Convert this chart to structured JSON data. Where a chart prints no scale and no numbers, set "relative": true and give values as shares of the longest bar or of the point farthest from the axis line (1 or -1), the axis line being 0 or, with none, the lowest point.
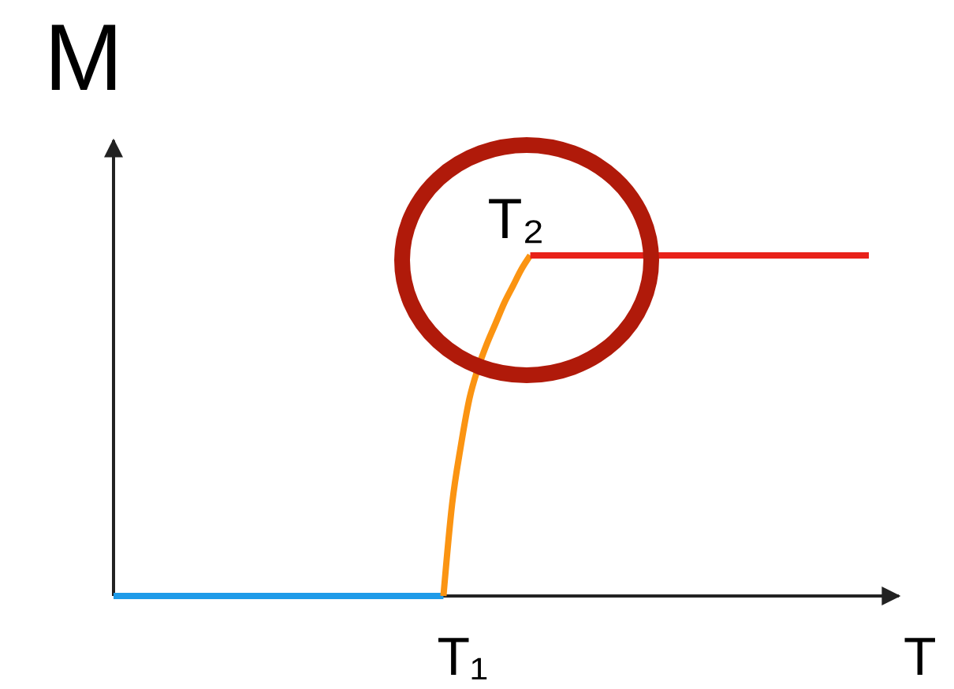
{
  "chart_data": {
    "type": "line",
    "relative": true,
    "xlabel": "T",
    "ylabel": "M",
    "categories": [
      null,
      null,
      null,
      null,
      null,
      null,
      null,
      null,
      null,
      null,
      null,
      null,
      null,
      null,
      null,
      null,
      null,
      null,
      null,
      null,
      null,
      null,
      null,
      null,
      null,
      null,
      null,
      null,
      null,
      null,
      null,
      null,
      null,
      null,
      null,
      null,
      null,
      null,
      null,
      null,
      null,
      null,
      null,
      null,
      null,
      null,
      null,
      null,
      null,
      null,
      null,
      null,
      null,
      null,
      null,
      null,
      null,
      null,
      null,
      null,
      null,
      null,
      null,
      null,
      null,
      null,
      null,
      null,
      null,
      null,
      null,
      null,
      null,
      null,
      null,
      null,
      null,
      null,
      null,
      null,
      null,
      null,
      null,
      null,
      null,
      null,
      null,
      null
    ],
    "series": [
      {
        "color": "#1e9be9",
        "values": [
          0,
          0,
          0,
          0,
          0,
          0,
          0,
          0,
          0,
          0,
          0,
          0,
          0,
          0,
          0,
          0,
          0,
          0,
          0,
          0,
          0,
          0,
          0,
          0,
          0,
          0,
          0,
          0,
          0,
          0,
          0,
          0,
          0,
          0,
          0,
          0,
          0,
          0,
          0,
          null,
          null,
          null,
          null,
          null,
          null,
          null,
          null,
          null,
          null,
          null,
          null,
          null,
          null,
          null,
          null,
          null,
          null,
          null,
          null,
          null,
          null,
          null,
          null,
          null,
          null,
          null,
          null,
          null,
          null,
          null,
          null,
          null,
          null,
          null,
          null,
          null,
          null,
          null,
          null,
          null,
          null,
          null,
          null,
          null,
          null,
          null,
          null,
          null
        ]
      },
      {
        "color": "#fb9412",
        "values": [
          null,
          null,
          null,
          null,
          null,
          null,
          null,
          null,
          null,
          null,
          null,
          null,
          null,
          null,
          null,
          null,
          null,
          null,
          null,
          null,
          null,
          null,
          null,
          null,
          null,
          null,
          null,
          null,
          null,
          null,
          null,
          null,
          null,
          null,
          null,
          null,
          null,
          null,
          0,
          0.27,
          0.44,
          0.58,
          0.67,
          0.74,
          0.8,
          0.86,
          0.91,
          0.96,
          1,
          null,
          null,
          null,
          null,
          null,
          null,
          null,
          null,
          null,
          null,
          null,
          null,
          null,
          null,
          null,
          null,
          null,
          null,
          null,
          null,
          null,
          null,
          null,
          null,
          null,
          null,
          null,
          null,
          null,
          null,
          null,
          null,
          null,
          null,
          null,
          null,
          null,
          null,
          null
        ]
      },
      {
        "color": "#e8221a",
        "values": [
          null,
          null,
          null,
          null,
          null,
          null,
          null,
          null,
          null,
          null,
          null,
          null,
          null,
          null,
          null,
          null,
          null,
          null,
          null,
          null,
          null,
          null,
          null,
          null,
          null,
          null,
          null,
          null,
          null,
          null,
          null,
          null,
          null,
          null,
          null,
          null,
          null,
          null,
          null,
          null,
          null,
          null,
          null,
          null,
          null,
          null,
          null,
          null,
          1,
          1,
          1,
          1,
          1,
          1,
          1,
          1,
          1,
          1,
          1,
          1,
          1,
          1,
          1,
          1,
          1,
          1,
          1,
          1,
          1,
          1,
          1,
          1,
          1,
          1,
          1,
          1,
          1,
          1,
          1,
          1,
          1,
          1,
          1,
          1,
          1,
          1,
          1,
          1
        ]
      }
    ],
    "annotations": [
      "T₁",
      "T₂"
    ]
  }
}
